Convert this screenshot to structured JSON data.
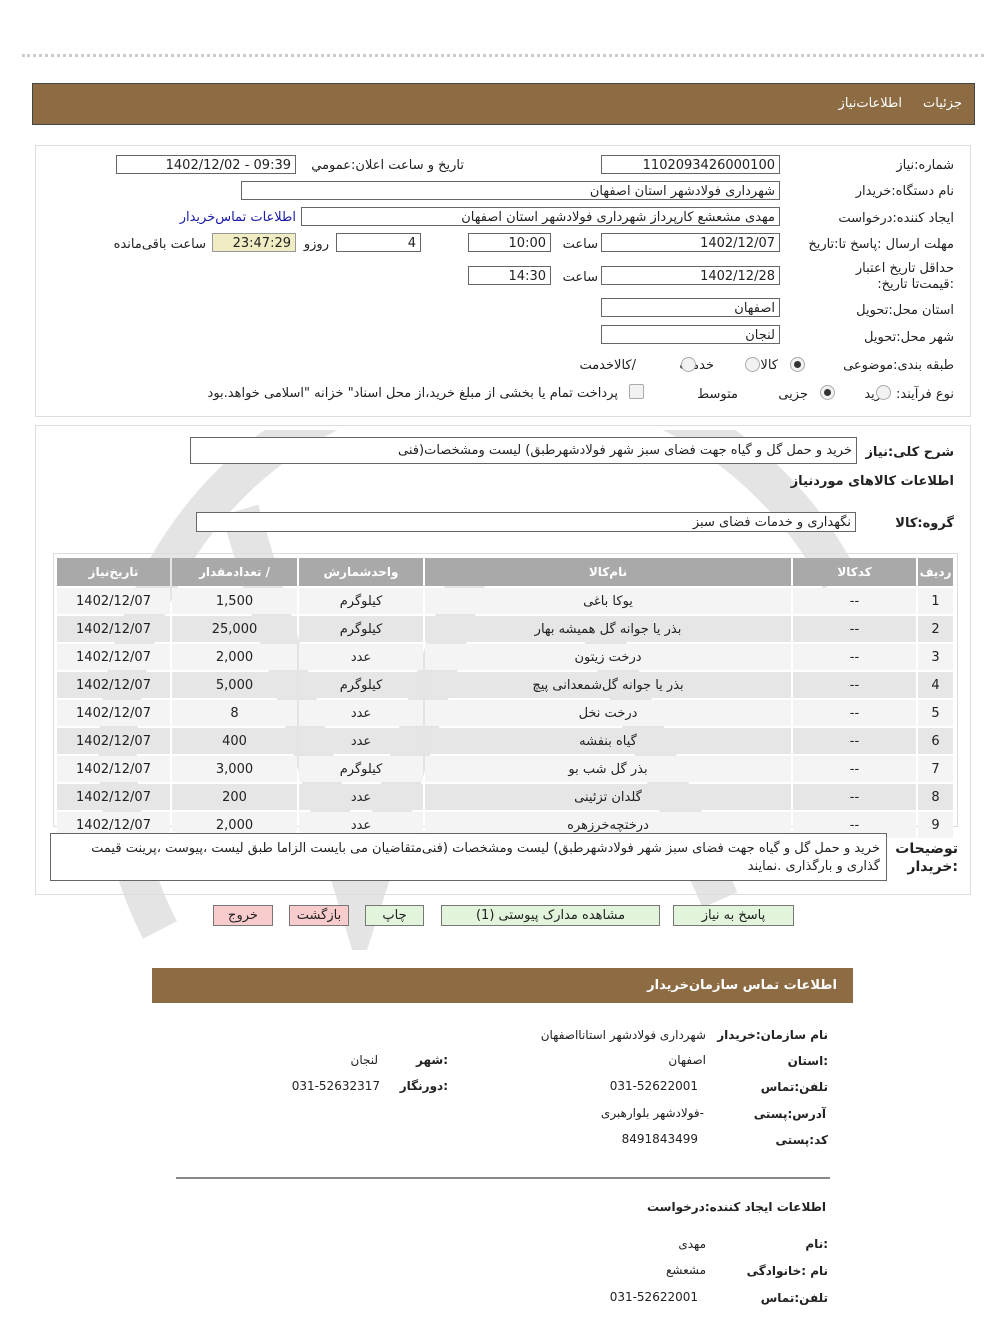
{
  "header": {
    "breadcrumb": [
      "جزئیات",
      "اطلاعات‌نیاز"
    ]
  },
  "info": {
    "need_number_label": "شماره:نیاز",
    "need_number": "1102093426000100",
    "announce_label": "تاریخ و ساعت اعلان:عمومي",
    "announce_value": "1402/12/02 - 09:39",
    "buyer_org_label": "نام دستگاه:خریدار",
    "buyer_org": "شهرداری فولادشهر استان اصفهان",
    "creator_label": "ایجاد کننده:درخواست",
    "creator": "مهدی مشعشع کارپرداز شهرداری فولادشهر استان اصفهان",
    "contact_link": "اطلاعات تماس‌خریدار",
    "deadline_label": "مهلت ارسال :پاسخ تا:تاریخ",
    "deadline_date": "1402/12/07",
    "time_label": "ساعت",
    "deadline_time": "10:00",
    "days": "4",
    "days_label": "روزو",
    "remaining": "23:47:29",
    "remaining_label": "ساعت باقی‌مانده",
    "validity_label": "حداقل تاریخ اعتبار :قیمت‌تا تاریخ:",
    "validity_date": "1402/12/28",
    "validity_time": "14:30",
    "province_label": "استان محل:تحویل",
    "province": "اصفهان",
    "city_label": "شهر محل:تحویل",
    "city": "لنجان",
    "category_label": "طبقه بندی:موضوعی",
    "category_options": [
      "کالا",
      "خدمت",
      "/کالاخدمت"
    ],
    "category_selected": "کالا",
    "process_label": "نوع فرآیند:",
    "process_options": [
      "خرید",
      "جزیی",
      "متوسط"
    ],
    "process_selected": "متوسط",
    "payment_note": "پرداخت تمام یا بخشی از مبلغ خرید،از محل اسناد\" خزانه \"اسلامی خواهد.بود"
  },
  "summary": {
    "label": "شرح کلی:نیاز",
    "value": "خرید و حمل گل و گیاه جهت فضای سبز شهر فولادشهرطبق) لیست ومشخصات(فنی",
    "goods_title": "اطلاعات کالاهای موردنیاز",
    "group_label": "گروه:کالا",
    "group_value": "نگهداری و خدمات فضای سبز"
  },
  "table": {
    "headers": [
      "ردیف",
      "کدکالا",
      "نام‌کالا",
      "واحدشمارش",
      "/ تعدادمقدار",
      "تاریخ‌نیاز"
    ],
    "rows": [
      [
        "1",
        "--",
        "یوکا باغی",
        "کیلوگرم",
        "1,500",
        "1402/12/07"
      ],
      [
        "2",
        "--",
        "بذر یا جوانه گل همیشه بهار",
        "کیلوگرم",
        "25,000",
        "1402/12/07"
      ],
      [
        "3",
        "--",
        "درخت زیتون",
        "عدد",
        "2,000",
        "1402/12/07"
      ],
      [
        "4",
        "--",
        "بذر یا جوانه گل‌شمعدانی پیچ",
        "کیلوگرم",
        "5,000",
        "1402/12/07"
      ],
      [
        "5",
        "--",
        "درخت نخل",
        "عدد",
        "8",
        "1402/12/07"
      ],
      [
        "6",
        "--",
        "گیاه بنفشه",
        "عدد",
        "400",
        "1402/12/07"
      ],
      [
        "7",
        "--",
        "بذر گل شب بو",
        "کیلوگرم",
        "3,000",
        "1402/12/07"
      ],
      [
        "8",
        "--",
        "گلدان تزئینی",
        "عدد",
        "200",
        "1402/12/07"
      ],
      [
        "9",
        "--",
        "درختچه‌خرزهره",
        "عدد",
        "2,000",
        "1402/12/07"
      ]
    ]
  },
  "buyer_notes": {
    "label": "توضیحات :خریدار",
    "value": "خرید و حمل گل و گیاه جهت فضای سبز شهر فولادشهرطبق) لیست ومشخصات (فنی‌متقاضیان می بایست الزاما طبق لیست ،پیوست ،پرینت قیمت گذاری و بارگذاری .نمایند"
  },
  "buttons": {
    "reply": "پاسخ به نیاز",
    "attachments": "مشاهده مدارک پیوستی (1)",
    "print": "چاپ",
    "back": "بازگشت",
    "exit": "خروج"
  },
  "contact": {
    "title": "اطلاعات  تماس سازمان‌خریدار",
    "org_label": "نام سازمان:خریدار",
    "org": "شهرداری فولادشهر استانااصفهان",
    "province_label": ":استان",
    "province": "اصفهان",
    "city_label": ":شهر",
    "city": "لنجان",
    "phone_label": "تلفن:تماس",
    "phone": "031-52622001",
    "fax_label": ":دورنگار",
    "fax": "031-52632317",
    "address_label": "آدرس:پستی",
    "address": "-فولادشهر بلوارهبری",
    "postal_label": "کد:پستی",
    "postal": "8491843499",
    "creator_title": "اطلاعات  ایجاد کننده:درخواست",
    "name_label": ":نام",
    "name": "مهدی",
    "family_label": "نام :خانوادگی",
    "family": "مشعشع",
    "creator_phone_label": "تلفن:تماس",
    "creator_phone": "031-52622001"
  },
  "colors": {
    "header_bg": "#8d6b43",
    "link": "#1a1aa6",
    "remaining_bg": "#f0ecc4",
    "green_btn": "#e2f5dc",
    "pink_btn": "#f8cccc"
  }
}
